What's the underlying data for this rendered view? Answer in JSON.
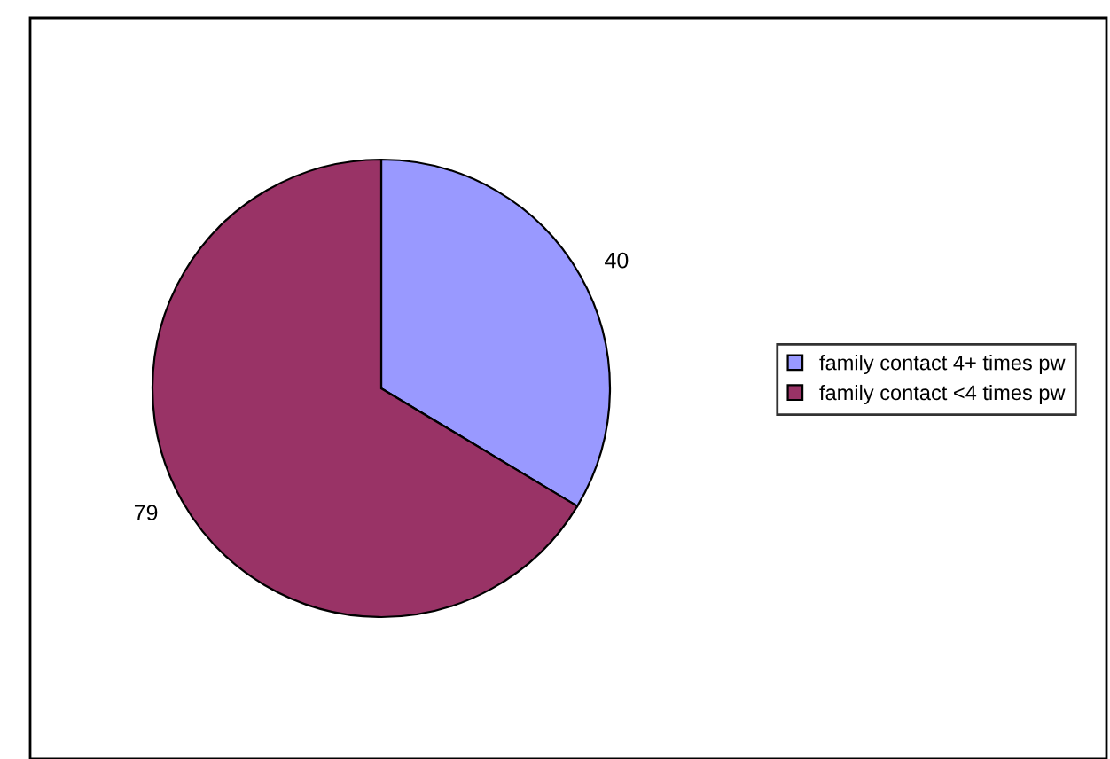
{
  "chart_data": {
    "type": "pie",
    "categories": [
      "family contact 4+ times pw",
      "family contact <4 times pw"
    ],
    "values": [
      40,
      79
    ],
    "colors": [
      "#9999ff",
      "#993366"
    ],
    "data_labels": true,
    "legend": "right"
  }
}
